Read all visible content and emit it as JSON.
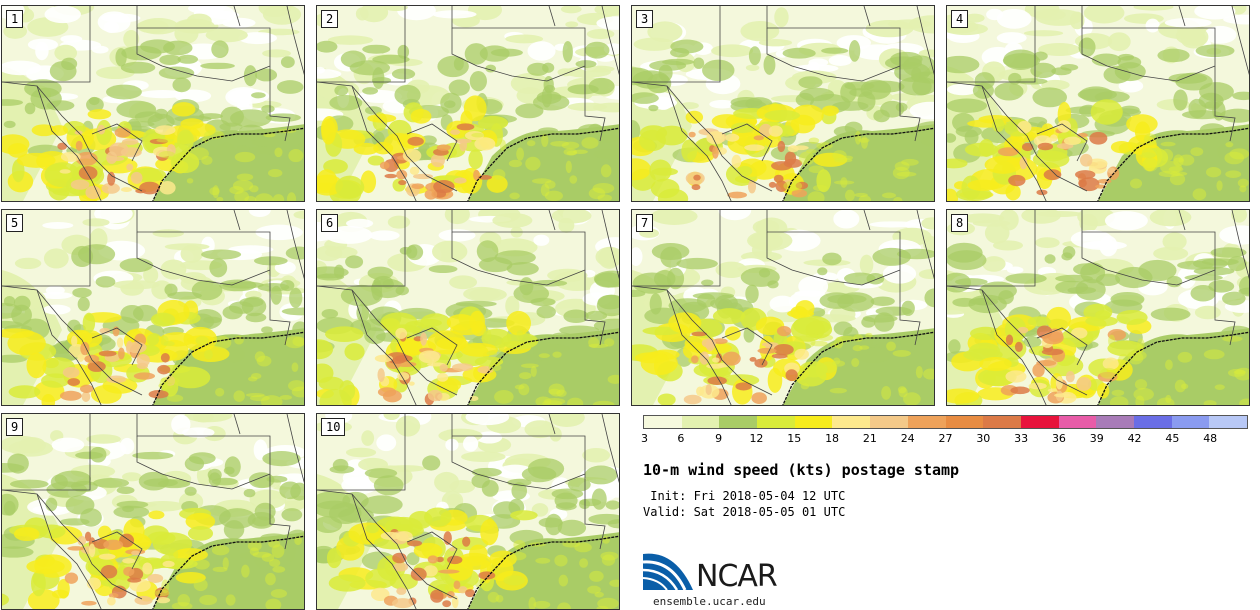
{
  "panels": [
    {
      "label": "1"
    },
    {
      "label": "2"
    },
    {
      "label": "3"
    },
    {
      "label": "4"
    },
    {
      "label": "5"
    },
    {
      "label": "6"
    },
    {
      "label": "7"
    },
    {
      "label": "8"
    },
    {
      "label": "9"
    },
    {
      "label": "10"
    }
  ],
  "colorbar": {
    "ticks": [
      "3",
      "6",
      "9",
      "12",
      "15",
      "18",
      "21",
      "24",
      "27",
      "30",
      "33",
      "36",
      "39",
      "42",
      "45",
      "48"
    ],
    "colors": [
      "#f6f9de",
      "#e3f1b0",
      "#a9cc66",
      "#d9eb3a",
      "#f7ec1c",
      "#fde98d",
      "#f4c989",
      "#eea25a",
      "#e88c42",
      "#dc7a47",
      "#e8133c",
      "#e85ca8",
      "#a87bb8",
      "#6a6ee6",
      "#8a9bf0",
      "#b8c8f6"
    ]
  },
  "title": "10-m wind speed (kts) postage stamp",
  "init": " Init: Fri 2018-05-04 12 UTC",
  "valid": "Valid: Sat 2018-05-05 01 UTC",
  "logo": {
    "text": "NCAR",
    "url_text": "ensemble.ucar.edu"
  }
}
